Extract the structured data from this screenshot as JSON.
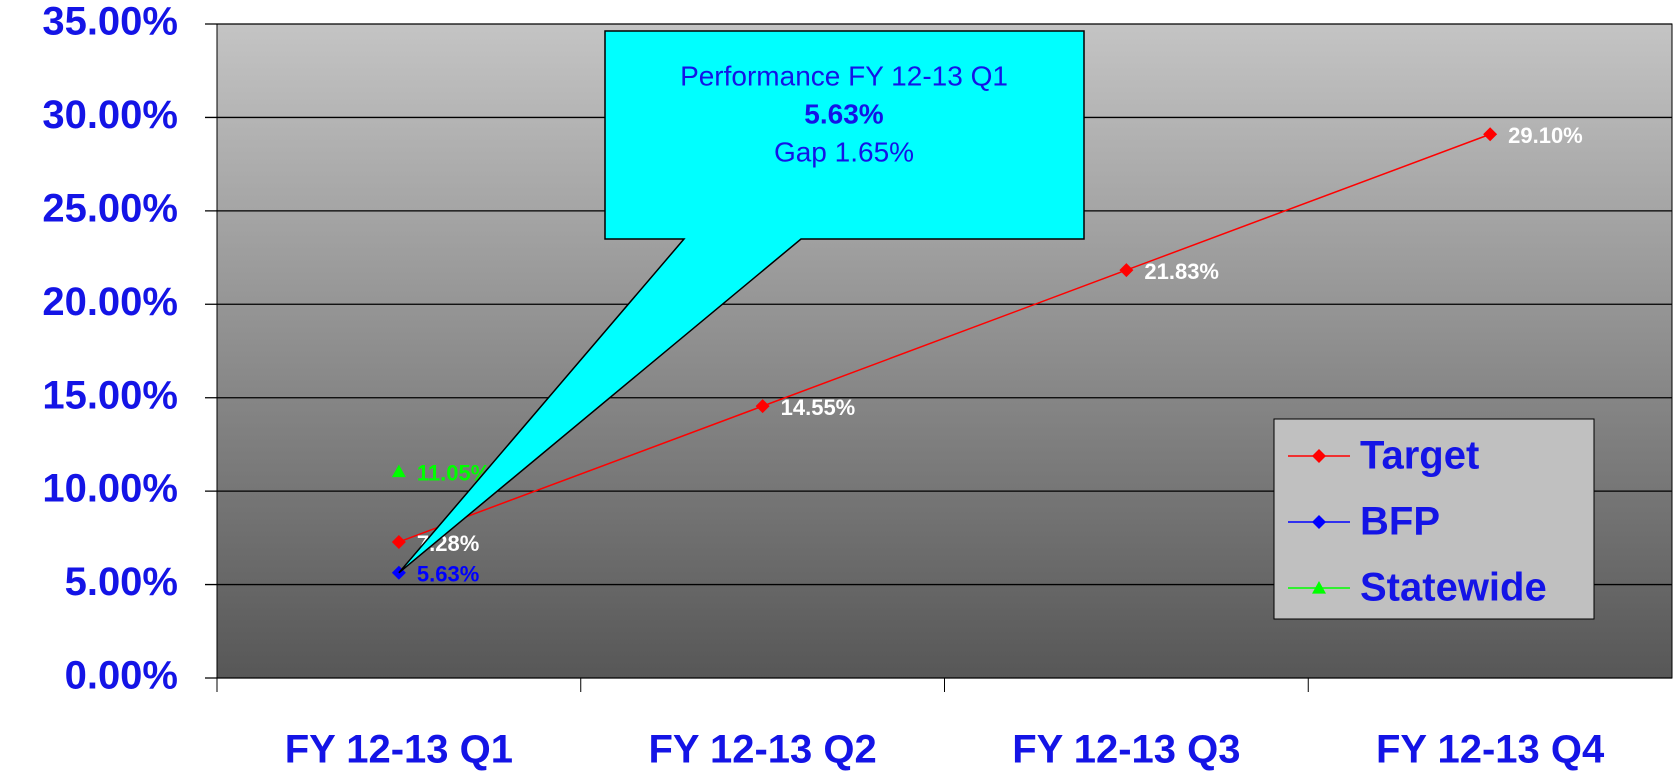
{
  "chart_data": {
    "type": "line",
    "categories": [
      "FY 12-13 Q1",
      "FY 12-13 Q2",
      "FY 12-13 Q3",
      "FY 12-13 Q4"
    ],
    "series": [
      {
        "name": "Target",
        "color": "#ff0000",
        "marker": "diamond",
        "values": [
          7.28,
          14.55,
          21.83,
          29.1
        ],
        "value_labels": [
          "7.28%",
          "14.55%",
          "21.83%",
          "29.10%"
        ],
        "label_color": "#ffffff"
      },
      {
        "name": "BFP",
        "color": "#0000ff",
        "marker": "diamond",
        "values": [
          5.63,
          null,
          null,
          null
        ],
        "value_labels": [
          "5.63%",
          null,
          null,
          null
        ],
        "label_color": "#0000ff"
      },
      {
        "name": "Statewide",
        "color": "#00ff00",
        "marker": "triangle",
        "values": [
          11.05,
          null,
          null,
          null
        ],
        "value_labels": [
          "11.05%",
          null,
          null,
          null
        ],
        "label_color": "#00ff00"
      }
    ],
    "ylim": [
      0,
      35
    ],
    "yticks": [
      {
        "value": 0,
        "label": "0.00%"
      },
      {
        "value": 5,
        "label": "5.00%"
      },
      {
        "value": 10,
        "label": "10.00%"
      },
      {
        "value": 15,
        "label": "15.00%"
      },
      {
        "value": 20,
        "label": "20.00%"
      },
      {
        "value": 25,
        "label": "25.00%"
      },
      {
        "value": 30,
        "label": "30.00%"
      },
      {
        "value": 35,
        "label": "35.00%"
      }
    ],
    "grid": true,
    "legend": "right",
    "annotation": {
      "lines": [
        "Performance FY 12-13 Q1",
        "5.63%",
        "Gap 1.65%"
      ]
    }
  }
}
